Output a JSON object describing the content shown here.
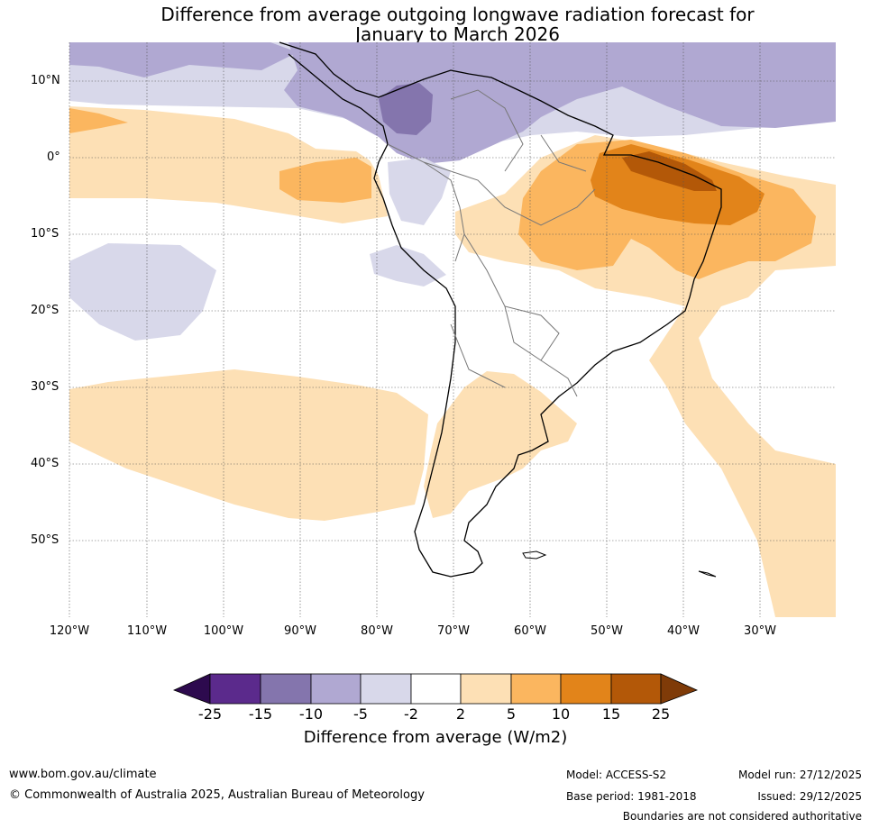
{
  "title_line1": "Difference from average outgoing longwave radiation forecast for",
  "title_line2": "January to March 2026",
  "lat_labels": [
    "10°N",
    "0°",
    "10°S",
    "20°S",
    "30°S",
    "40°S",
    "50°S"
  ],
  "lon_labels": [
    "120°W",
    "110°W",
    "100°W",
    "90°W",
    "80°W",
    "70°W",
    "60°W",
    "50°W",
    "40°W",
    "30°W"
  ],
  "colorbar": {
    "ticks": [
      "-25",
      "-15",
      "-10",
      "-5",
      "-2",
      "2",
      "5",
      "10",
      "15",
      "25"
    ],
    "colors": {
      "below": "#2d0a4e",
      "n25": "#5b2a8c",
      "n15": "#8475ad",
      "n10": "#b0a8d2",
      "n5": "#d8d8ea",
      "neutral": "#ffffff",
      "p2": "#fde0b5",
      "p5": "#fbb65f",
      "p10": "#e2841a",
      "p15": "#b35808",
      "above": "#7f3b08"
    },
    "label": "Difference from average (W/m2)"
  },
  "footer": {
    "website": "www.bom.gov.au/climate",
    "copyright": "© Commonwealth of Australia 2025, Australian Bureau of Meteorology",
    "model": "Model: ACCESS-S2",
    "base_period": "Base period: 1981-2018",
    "model_run": "Model run: 27/12/2025",
    "issued": "Issued: 29/12/2025",
    "disclaimer": "Boundaries are not considered authoritative"
  }
}
